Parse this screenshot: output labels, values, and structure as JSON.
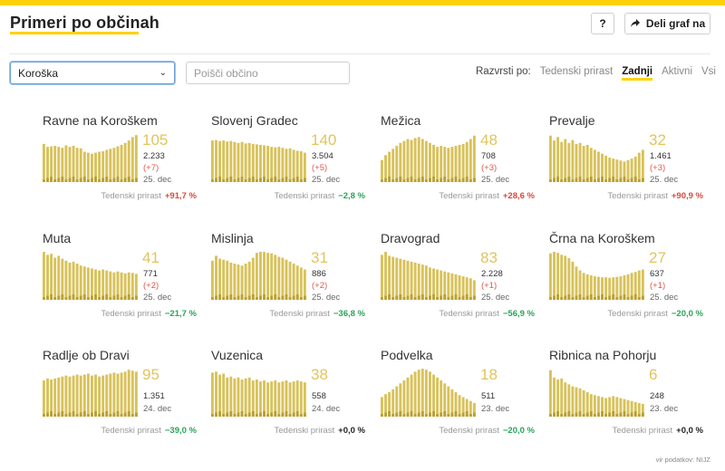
{
  "header": {
    "title": "Primeri po občinah",
    "help_label": "?",
    "share_label": "Deli graf na"
  },
  "filters": {
    "region_selected": "Koroška",
    "search_placeholder": "Poišči občino"
  },
  "sort": {
    "label": "Razvrsti po:",
    "options": [
      "Tedenski prirast",
      "Zadnji",
      "Aktivni",
      "Vsi"
    ],
    "active": "Zadnji"
  },
  "colors": {
    "accent": "#ffd10a",
    "bar": "#d8c25a",
    "bar_dark": "#b9a033",
    "positive_growth": "#d9483b",
    "negative_growth": "#2aa35a"
  },
  "weekly_label": "Tedenski prirast",
  "municipalities": [
    {
      "name": "Ravne na Koroškem",
      "active": "105",
      "total": "2.233",
      "delta": "(+7)",
      "date": "25. dec",
      "weekly": "+91,7 %",
      "trend": "up",
      "series": [
        0.78,
        0.72,
        0.73,
        0.74,
        0.72,
        0.7,
        0.75,
        0.72,
        0.74,
        0.7,
        0.69,
        0.62,
        0.6,
        0.58,
        0.6,
        0.62,
        0.63,
        0.66,
        0.68,
        0.7,
        0.73,
        0.76,
        0.8,
        0.85,
        0.92,
        0.96
      ]
    },
    {
      "name": "Slovenj Gradec",
      "active": "140",
      "total": "3.504",
      "delta": "(+5)",
      "date": "25. dec",
      "weekly": "−2,8 %",
      "trend": "down",
      "series": [
        0.85,
        0.86,
        0.84,
        0.85,
        0.83,
        0.84,
        0.82,
        0.8,
        0.82,
        0.79,
        0.8,
        0.78,
        0.77,
        0.76,
        0.75,
        0.74,
        0.72,
        0.71,
        0.72,
        0.7,
        0.68,
        0.69,
        0.66,
        0.64,
        0.63,
        0.6
      ]
    },
    {
      "name": "Mežica",
      "active": "48",
      "total": "708",
      "delta": "(+3)",
      "date": "25. dec",
      "weekly": "+28,6 %",
      "trend": "up",
      "series": [
        0.45,
        0.55,
        0.62,
        0.68,
        0.74,
        0.8,
        0.84,
        0.88,
        0.86,
        0.9,
        0.92,
        0.88,
        0.84,
        0.8,
        0.76,
        0.72,
        0.74,
        0.72,
        0.7,
        0.72,
        0.74,
        0.76,
        0.78,
        0.82,
        0.88,
        0.95
      ]
    },
    {
      "name": "Prevalje",
      "active": "32",
      "total": "1.461",
      "delta": "(+3)",
      "date": "25. dec",
      "weekly": "+90,9 %",
      "trend": "up",
      "series": [
        0.95,
        0.85,
        0.92,
        0.82,
        0.88,
        0.8,
        0.86,
        0.78,
        0.8,
        0.74,
        0.76,
        0.7,
        0.66,
        0.62,
        0.58,
        0.54,
        0.5,
        0.48,
        0.46,
        0.44,
        0.42,
        0.45,
        0.48,
        0.52,
        0.6,
        0.66
      ]
    },
    {
      "name": "Muta",
      "active": "41",
      "total": "771",
      "delta": "(+2)",
      "date": "25. dec",
      "weekly": "−21,7 %",
      "trend": "down",
      "series": [
        0.98,
        0.92,
        0.94,
        0.86,
        0.9,
        0.84,
        0.8,
        0.76,
        0.78,
        0.74,
        0.7,
        0.68,
        0.66,
        0.64,
        0.62,
        0.6,
        0.62,
        0.6,
        0.58,
        0.56,
        0.58,
        0.56,
        0.54,
        0.56,
        0.55,
        0.53
      ]
    },
    {
      "name": "Mislinja",
      "active": "31",
      "total": "886",
      "delta": "(+2)",
      "date": "25. dec",
      "weekly": "−36,8 %",
      "trend": "down",
      "series": [
        0.8,
        0.9,
        0.84,
        0.82,
        0.8,
        0.76,
        0.74,
        0.72,
        0.7,
        0.74,
        0.78,
        0.86,
        0.96,
        0.98,
        0.98,
        0.96,
        0.95,
        0.92,
        0.88,
        0.86,
        0.82,
        0.78,
        0.74,
        0.7,
        0.66,
        0.62
      ]
    },
    {
      "name": "Dravograd",
      "active": "83",
      "total": "2.228",
      "delta": "(+1)",
      "date": "25. dec",
      "weekly": "−56,9 %",
      "trend": "down",
      "series": [
        0.92,
        0.98,
        0.9,
        0.88,
        0.86,
        0.84,
        0.82,
        0.8,
        0.78,
        0.76,
        0.74,
        0.72,
        0.7,
        0.66,
        0.64,
        0.62,
        0.6,
        0.58,
        0.56,
        0.54,
        0.52,
        0.5,
        0.48,
        0.46,
        0.44,
        0.4
      ]
    },
    {
      "name": "Črna na Koroškem",
      "active": "27",
      "total": "637",
      "delta": "(+1)",
      "date": "25. dec",
      "weekly": "−20,0 %",
      "trend": "down",
      "series": [
        0.95,
        0.98,
        0.96,
        0.92,
        0.9,
        0.85,
        0.78,
        0.68,
        0.6,
        0.55,
        0.52,
        0.5,
        0.48,
        0.47,
        0.46,
        0.46,
        0.45,
        0.46,
        0.47,
        0.48,
        0.5,
        0.52,
        0.55,
        0.57,
        0.6,
        0.62
      ]
    },
    {
      "name": "Radlje ob Dravi",
      "active": "95",
      "total": "1.351",
      "delta": "",
      "date": "24. dec",
      "weekly": "−39,0 %",
      "trend": "down",
      "series": [
        0.74,
        0.78,
        0.76,
        0.78,
        0.8,
        0.82,
        0.84,
        0.82,
        0.84,
        0.86,
        0.84,
        0.86,
        0.88,
        0.84,
        0.86,
        0.82,
        0.84,
        0.86,
        0.88,
        0.9,
        0.88,
        0.9,
        0.92,
        0.96,
        0.94,
        0.92
      ]
    },
    {
      "name": "Vuzenica",
      "active": "38",
      "total": "558",
      "delta": "",
      "date": "24. dec",
      "weekly": "+0,0 %",
      "trend": "zero",
      "series": [
        0.9,
        0.92,
        0.86,
        0.88,
        0.8,
        0.82,
        0.78,
        0.8,
        0.76,
        0.78,
        0.8,
        0.74,
        0.76,
        0.72,
        0.74,
        0.7,
        0.72,
        0.74,
        0.7,
        0.72,
        0.74,
        0.7,
        0.72,
        0.74,
        0.72,
        0.7
      ]
    },
    {
      "name": "Podvelka",
      "active": "18",
      "total": "511",
      "delta": "",
      "date": "23. dec",
      "weekly": "−20,0 %",
      "trend": "down",
      "series": [
        0.4,
        0.46,
        0.5,
        0.56,
        0.62,
        0.68,
        0.74,
        0.8,
        0.86,
        0.92,
        0.96,
        0.98,
        0.96,
        0.92,
        0.86,
        0.8,
        0.74,
        0.68,
        0.62,
        0.56,
        0.5,
        0.44,
        0.4,
        0.36,
        0.32,
        0.28
      ]
    },
    {
      "name": "Ribnica na Pohorju",
      "active": "6",
      "total": "248",
      "delta": "",
      "date": "23. dec",
      "weekly": "+0,0 %",
      "trend": "zero",
      "series": [
        0.95,
        0.8,
        0.76,
        0.78,
        0.7,
        0.66,
        0.62,
        0.6,
        0.58,
        0.54,
        0.5,
        0.46,
        0.44,
        0.42,
        0.4,
        0.38,
        0.4,
        0.42,
        0.4,
        0.38,
        0.36,
        0.34,
        0.32,
        0.3,
        0.28,
        0.26
      ]
    }
  ],
  "source": "vir podatkov: NIJZ"
}
